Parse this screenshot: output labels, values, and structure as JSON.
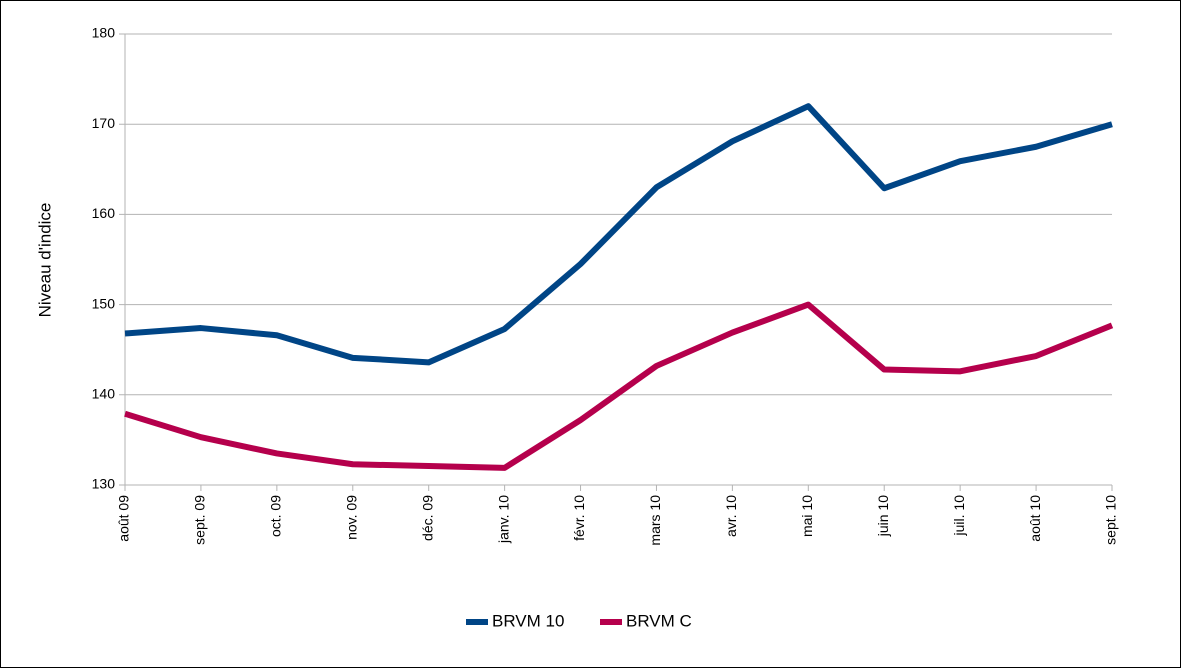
{
  "chart_data": {
    "type": "line",
    "y_label": "Niveau d'indice",
    "categories": [
      "août 09",
      "sept. 09",
      "oct. 09",
      "nov. 09",
      "déc. 09",
      "janv. 10",
      "févr. 10",
      "mars 10",
      "avr. 10",
      "mai 10",
      "juin 10",
      "juil. 10",
      "août 10",
      "sept. 10"
    ],
    "series": [
      {
        "name": "BRVM 10",
        "color": "#004586",
        "values": [
          146.8,
          147.4,
          146.6,
          144.1,
          143.6,
          147.3,
          154.5,
          163.0,
          168.1,
          172.0,
          162.9,
          165.9,
          167.5,
          170.0
        ]
      },
      {
        "name": "BRVM C",
        "color": "#b5004c",
        "values": [
          137.9,
          135.3,
          133.5,
          132.3,
          132.1,
          131.9,
          137.2,
          143.2,
          146.9,
          150.0,
          142.8,
          142.6,
          144.3,
          147.7
        ]
      }
    ],
    "ylim": [
      130,
      180
    ],
    "yticks": [
      130,
      140,
      150,
      160,
      170,
      180
    ],
    "grid": true
  }
}
